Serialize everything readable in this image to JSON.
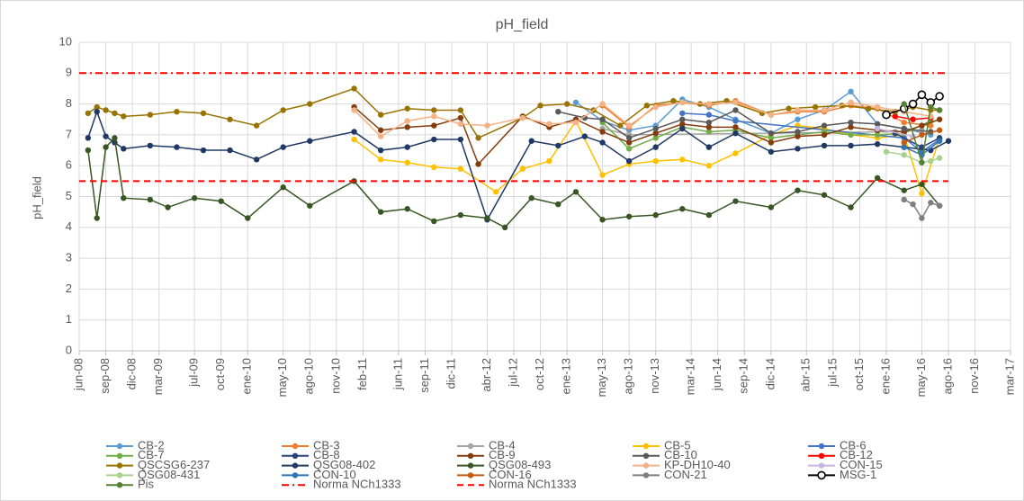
{
  "chart_data": {
    "type": "line",
    "title": "pH_field",
    "ylabel": "pH_field",
    "xlim": [
      "2008-06",
      "2017-03"
    ],
    "xticks": [
      {
        "value": "2008-06",
        "label": "jun-08"
      },
      {
        "value": "2008-09",
        "label": "sep-08"
      },
      {
        "value": "2008-12",
        "label": "dic-08"
      },
      {
        "value": "2009-03",
        "label": "mar-09"
      },
      {
        "value": "2009-07",
        "label": "jul-09"
      },
      {
        "value": "2009-10",
        "label": "oct-09"
      },
      {
        "value": "2010-01",
        "label": "ene-10"
      },
      {
        "value": "2010-05",
        "label": "may-10"
      },
      {
        "value": "2010-08",
        "label": "ago-10"
      },
      {
        "value": "2010-11",
        "label": "nov-10"
      },
      {
        "value": "2011-02",
        "label": "feb-11"
      },
      {
        "value": "2011-06",
        "label": "jun-11"
      },
      {
        "value": "2011-09",
        "label": "sep-11"
      },
      {
        "value": "2011-12",
        "label": "dic-11"
      },
      {
        "value": "2012-04",
        "label": "abr-12"
      },
      {
        "value": "2012-07",
        "label": "jul-12"
      },
      {
        "value": "2012-10",
        "label": "oct-12"
      },
      {
        "value": "2013-01",
        "label": "ene-13"
      },
      {
        "value": "2013-05",
        "label": "may-13"
      },
      {
        "value": "2013-08",
        "label": "ago-13"
      },
      {
        "value": "2013-11",
        "label": "nov-13"
      },
      {
        "value": "2014-03",
        "label": "mar-14"
      },
      {
        "value": "2014-06",
        "label": "jun-14"
      },
      {
        "value": "2014-09",
        "label": "sep-14"
      },
      {
        "value": "2014-12",
        "label": "dic-14"
      },
      {
        "value": "2015-04",
        "label": "abr-15"
      },
      {
        "value": "2015-07",
        "label": "jul-15"
      },
      {
        "value": "2015-10",
        "label": "oct-15"
      },
      {
        "value": "2016-01",
        "label": "ene-16"
      },
      {
        "value": "2016-05",
        "label": "may-16"
      },
      {
        "value": "2016-08",
        "label": "ago-16"
      },
      {
        "value": "2016-11",
        "label": "nov-16"
      },
      {
        "value": "2017-03",
        "label": "mar-17"
      }
    ],
    "ylim": [
      0,
      10
    ],
    "yticks": [
      0,
      1,
      2,
      3,
      4,
      5,
      6,
      7,
      8,
      9,
      10
    ],
    "grid": true,
    "series": [
      {
        "name": "CB-2",
        "color": "#5b9bd5",
        "x": [
          "2013-02",
          "2013-05",
          "2013-08",
          "2013-11",
          "2014-02",
          "2014-05",
          "2014-08",
          "2014-12",
          "2015-03",
          "2015-06",
          "2015-09",
          "2015-12",
          "2016-03",
          "2016-06"
        ],
        "values": [
          8.05,
          7.45,
          7.15,
          7.3,
          8.15,
          7.9,
          7.5,
          7.05,
          7.5,
          7.8,
          8.4,
          7.35,
          7.2,
          7.0
        ]
      },
      {
        "name": "CB-3",
        "color": "#ed7d31",
        "x": [
          "2013-05",
          "2013-08",
          "2013-11",
          "2014-02",
          "2014-05",
          "2014-08",
          "2014-12",
          "2015-03",
          "2015-06",
          "2015-09",
          "2015-12",
          "2016-03",
          "2016-06"
        ],
        "values": [
          7.95,
          7.25,
          7.95,
          8.05,
          7.95,
          8.1,
          7.65,
          7.75,
          7.75,
          7.95,
          7.85,
          7.4,
          7.3
        ]
      },
      {
        "name": "CB-4",
        "color": "#a5a5a5",
        "x": [
          "2013-05",
          "2013-08",
          "2016-02",
          "2016-05"
        ],
        "values": [
          7.2,
          7.0,
          7.1,
          7.15
        ]
      },
      {
        "name": "CB-5",
        "color": "#ffc000",
        "x": [
          "2011-01",
          "2011-04",
          "2011-07",
          "2011-10",
          "2012-01",
          "2012-05",
          "2012-08",
          "2012-11",
          "2013-02",
          "2013-05",
          "2013-08",
          "2013-11",
          "2014-02",
          "2014-05",
          "2014-08",
          "2014-12",
          "2015-03",
          "2015-06",
          "2015-09",
          "2015-12",
          "2016-03",
          "2016-05",
          "2016-07"
        ],
        "values": [
          6.85,
          6.2,
          6.1,
          5.95,
          5.9,
          5.15,
          5.9,
          6.15,
          7.45,
          5.7,
          6.05,
          6.15,
          6.2,
          6.0,
          6.4,
          7.0,
          7.3,
          7.2,
          7.0,
          6.9,
          7.0,
          5.1,
          6.9
        ]
      },
      {
        "name": "CB-6",
        "color": "#4472c4",
        "x": [
          "2014-02",
          "2014-05",
          "2014-08",
          "2016-03",
          "2016-05",
          "2016-07"
        ],
        "values": [
          7.7,
          7.65,
          7.45,
          6.9,
          6.45,
          6.85
        ]
      },
      {
        "name": "CB-7",
        "color": "#70ad47",
        "x": [
          "2013-05",
          "2013-08",
          "2013-11",
          "2014-02",
          "2014-05",
          "2014-08",
          "2014-12",
          "2015-03",
          "2015-06",
          "2015-09",
          "2015-12",
          "2016-03",
          "2016-06"
        ],
        "values": [
          7.4,
          6.55,
          6.9,
          7.25,
          7.1,
          7.15,
          6.9,
          7.0,
          7.1,
          7.0,
          7.0,
          7.05,
          7.45
        ]
      },
      {
        "name": "CB-8",
        "color": "#264478",
        "x": [
          "2016-02",
          "2016-05",
          "2016-07"
        ],
        "values": [
          7.05,
          6.6,
          6.9
        ]
      },
      {
        "name": "CB-9",
        "color": "#843c0c",
        "x": [
          "2011-01",
          "2011-04",
          "2011-07",
          "2011-10",
          "2012-01",
          "2012-03",
          "2012-08",
          "2012-11",
          "2013-02",
          "2013-05",
          "2013-08",
          "2013-11",
          "2014-02",
          "2014-05",
          "2014-08",
          "2014-12",
          "2015-03",
          "2015-06",
          "2015-09",
          "2015-12",
          "2016-03",
          "2016-05",
          "2016-07"
        ],
        "values": [
          7.9,
          7.15,
          7.25,
          7.3,
          7.55,
          6.05,
          7.6,
          7.25,
          7.5,
          7.1,
          6.75,
          7.05,
          7.35,
          7.25,
          7.25,
          6.75,
          6.95,
          7.0,
          7.25,
          7.15,
          7.1,
          7.3,
          7.5
        ]
      },
      {
        "name": "CB-10",
        "color": "#595959",
        "x": [
          "2012-12",
          "2013-03",
          "2013-05",
          "2013-08",
          "2013-11",
          "2014-02",
          "2014-05",
          "2014-08",
          "2014-12",
          "2015-03",
          "2015-06",
          "2015-09",
          "2015-12",
          "2016-03",
          "2016-06"
        ],
        "values": [
          7.75,
          7.55,
          7.5,
          6.9,
          7.2,
          7.5,
          7.4,
          7.8,
          7.05,
          7.1,
          7.3,
          7.4,
          7.35,
          7.2,
          7.1
        ]
      },
      {
        "name": "CB-12",
        "color": "#ff0000",
        "x": [
          "2016-02",
          "2016-04",
          "2016-06"
        ],
        "values": [
          7.6,
          7.5,
          7.55
        ]
      },
      {
        "name": "QSCSG6-237",
        "color": "#997300",
        "x": [
          "2008-07",
          "2008-08",
          "2008-09",
          "2008-10",
          "2008-11",
          "2009-02",
          "2009-05",
          "2009-08",
          "2009-11",
          "2010-02",
          "2010-05",
          "2010-08",
          "2011-01",
          "2011-04",
          "2011-07",
          "2011-10",
          "2012-01",
          "2012-03",
          "2012-08",
          "2012-10",
          "2013-01",
          "2013-04",
          "2013-07",
          "2013-10",
          "2014-01",
          "2014-04",
          "2014-07",
          "2014-11",
          "2015-02",
          "2015-05",
          "2015-08",
          "2015-11",
          "2016-02",
          "2016-04",
          "2016-06",
          "2016-07"
        ],
        "values": [
          7.7,
          7.9,
          7.8,
          7.7,
          7.6,
          7.65,
          7.75,
          7.7,
          7.5,
          7.3,
          7.8,
          8.0,
          8.5,
          7.65,
          7.85,
          7.8,
          7.8,
          6.9,
          7.55,
          7.95,
          8.0,
          7.8,
          7.3,
          7.95,
          8.1,
          8.0,
          8.1,
          7.7,
          7.85,
          7.9,
          7.95,
          7.85,
          7.75,
          7.9,
          7.8,
          7.8
        ]
      },
      {
        "name": "QSG08-402",
        "color": "#203864",
        "x": [
          "2008-07",
          "2008-08",
          "2008-09",
          "2008-10",
          "2008-11",
          "2009-02",
          "2009-05",
          "2009-08",
          "2009-11",
          "2010-02",
          "2010-05",
          "2010-08",
          "2011-01",
          "2011-04",
          "2011-07",
          "2011-10",
          "2012-01",
          "2012-04",
          "2012-09",
          "2012-12",
          "2013-03",
          "2013-05",
          "2013-08",
          "2013-11",
          "2014-02",
          "2014-05",
          "2014-08",
          "2014-12",
          "2015-03",
          "2015-06",
          "2015-09",
          "2015-12",
          "2016-03",
          "2016-06",
          "2016-08"
        ],
        "values": [
          6.9,
          7.75,
          6.95,
          6.75,
          6.55,
          6.65,
          6.6,
          6.5,
          6.5,
          6.2,
          6.6,
          6.8,
          7.1,
          6.5,
          6.6,
          6.85,
          6.85,
          4.25,
          6.8,
          6.65,
          6.95,
          6.75,
          6.15,
          6.6,
          7.2,
          6.6,
          7.05,
          6.45,
          6.55,
          6.65,
          6.65,
          6.7,
          6.6,
          6.5,
          6.8
        ]
      },
      {
        "name": "QSG08-493",
        "color": "#375623",
        "x": [
          "2008-07",
          "2008-08",
          "2008-09",
          "2008-10",
          "2008-11",
          "2009-02",
          "2009-04",
          "2009-07",
          "2009-10",
          "2010-01",
          "2010-05",
          "2010-08",
          "2011-01",
          "2011-04",
          "2011-07",
          "2011-10",
          "2012-01",
          "2012-04",
          "2012-06",
          "2012-09",
          "2012-12",
          "2013-02",
          "2013-05",
          "2013-08",
          "2013-11",
          "2014-02",
          "2014-05",
          "2014-08",
          "2014-12",
          "2015-03",
          "2015-06",
          "2015-09",
          "2015-12",
          "2016-03",
          "2016-05",
          "2016-07"
        ],
        "values": [
          6.5,
          4.3,
          6.6,
          6.9,
          4.95,
          4.9,
          4.65,
          4.95,
          4.85,
          4.3,
          5.3,
          4.7,
          5.5,
          4.5,
          4.6,
          4.2,
          4.4,
          4.3,
          4.0,
          4.95,
          4.75,
          5.15,
          4.25,
          4.35,
          4.4,
          4.6,
          4.4,
          4.85,
          4.65,
          5.2,
          5.05,
          4.65,
          5.6,
          5.2,
          5.4,
          4.7
        ]
      },
      {
        "name": "KP-DH10-40",
        "color": "#f4b183",
        "x": [
          "2011-01",
          "2011-04",
          "2011-07",
          "2011-10",
          "2012-01",
          "2012-04",
          "2012-08",
          "2012-11",
          "2013-02",
          "2013-05",
          "2013-08",
          "2013-11",
          "2014-02",
          "2014-05",
          "2014-08",
          "2014-12",
          "2015-03",
          "2015-06",
          "2015-09",
          "2015-12",
          "2016-03",
          "2016-06"
        ],
        "values": [
          7.8,
          6.95,
          7.45,
          7.6,
          7.35,
          7.3,
          7.55,
          7.35,
          7.4,
          8.0,
          7.3,
          7.9,
          8.05,
          8.0,
          8.05,
          7.65,
          7.8,
          7.8,
          8.05,
          7.9,
          7.75,
          7.6
        ]
      },
      {
        "name": "CON-15",
        "color": "#c9b3e0",
        "x": [
          "2015-12",
          "2016-04"
        ],
        "values": [
          7.2,
          6.95
        ]
      },
      {
        "name": "QSG08-431",
        "color": "#a9d18e",
        "x": [
          "2016-01",
          "2016-03",
          "2016-05",
          "2016-06",
          "2016-07"
        ],
        "values": [
          6.45,
          6.35,
          6.1,
          6.15,
          6.25
        ]
      },
      {
        "name": "CON-10",
        "color": "#2e75b6",
        "x": [
          "2016-03",
          "2016-05",
          "2016-07"
        ],
        "values": [
          6.6,
          6.35,
          6.8
        ]
      },
      {
        "name": "CON-16",
        "color": "#c55a11",
        "x": [
          "2016-03",
          "2016-05",
          "2016-07"
        ],
        "values": [
          6.75,
          7.0,
          7.15
        ]
      },
      {
        "name": "CON-21",
        "color": "#7f7f7f",
        "x": [
          "2016-03",
          "2016-04",
          "2016-05",
          "2016-06",
          "2016-07"
        ],
        "values": [
          4.9,
          4.75,
          4.3,
          4.8,
          4.7
        ]
      },
      {
        "name": "MSG-1",
        "color": "#000000",
        "hollow": true,
        "x": [
          "2016-01",
          "2016-03",
          "2016-04",
          "2016-05",
          "2016-06",
          "2016-07"
        ],
        "values": [
          7.65,
          7.85,
          8.0,
          8.3,
          8.05,
          8.25
        ]
      },
      {
        "name": "Pis",
        "color": "#548235",
        "x": [
          "2016-03",
          "2016-05",
          "2016-06",
          "2016-07"
        ],
        "values": [
          8.0,
          6.1,
          7.9,
          7.8
        ]
      },
      {
        "name": "Norma NCh1333",
        "color": "#ff0000",
        "dash": "dashdot",
        "markers": false,
        "x": [
          "2008-06",
          "2016-08"
        ],
        "values": [
          9,
          9
        ]
      },
      {
        "name": "Norma NCh1333",
        "color": "#ff0000",
        "dash": "dash",
        "markers": false,
        "x": [
          "2008-06",
          "2016-08"
        ],
        "values": [
          5.5,
          5.5
        ]
      }
    ]
  }
}
